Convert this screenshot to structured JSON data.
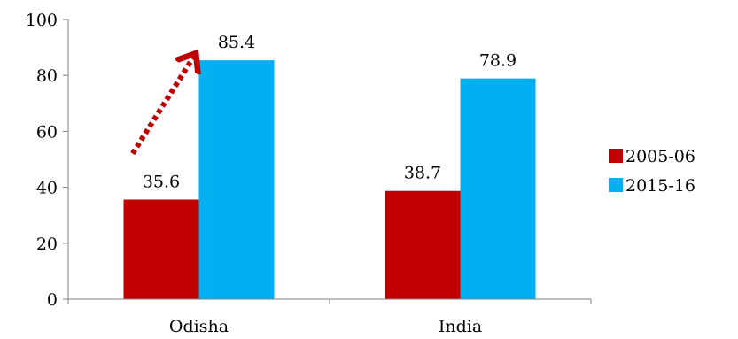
{
  "chart_data": {
    "type": "bar",
    "categories": [
      "Odisha",
      "India"
    ],
    "series": [
      {
        "name": "2005-06",
        "values": [
          35.6,
          38.7
        ],
        "color": "#c00000"
      },
      {
        "name": "2015-16",
        "values": [
          85.4,
          78.9
        ],
        "color": "#00b0f0"
      }
    ],
    "data_labels": [
      [
        "35.6",
        "38.7"
      ],
      [
        "85.4",
        "78.9"
      ]
    ],
    "ylim": [
      0,
      100
    ],
    "yticks": [
      0,
      20,
      40,
      60,
      80,
      100
    ],
    "title": "",
    "xlabel": "",
    "ylabel": "",
    "grid": false,
    "legend_position": "right",
    "annotation": {
      "kind": "dotted-arrow",
      "color": "#c00000",
      "from": [
        "Odisha",
        "2005-06"
      ],
      "to": [
        "Odisha",
        "2015-16"
      ]
    }
  }
}
